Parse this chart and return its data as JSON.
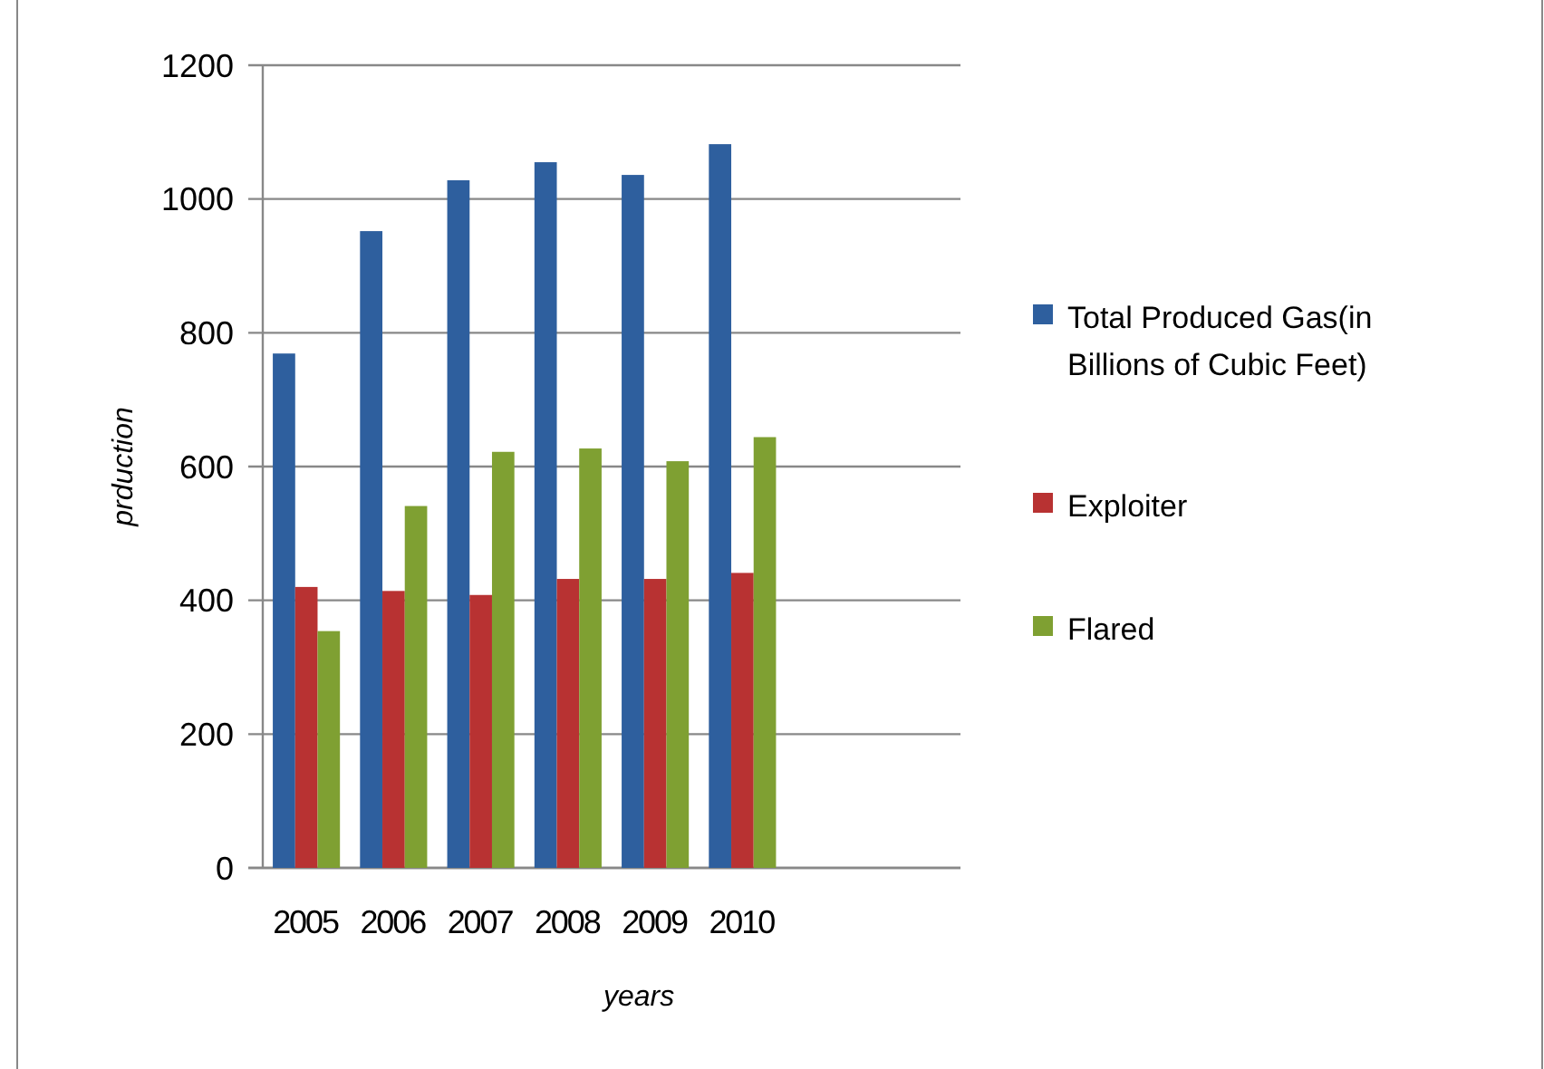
{
  "chart_data": {
    "type": "bar",
    "xlabel": "years",
    "ylabel": "prduction",
    "categories": [
      "2005",
      "2006",
      "2007",
      "2008",
      "2009",
      "2010",
      null,
      null
    ],
    "series": [
      {
        "name": "Total Produced Gas(in Billions of Cubic Feet)",
        "color": "#2e5f9e",
        "values": [
          769,
          952,
          1028,
          1055,
          1036,
          1082,
          null,
          null
        ]
      },
      {
        "name": "Exploiter",
        "color": "#b83232",
        "values": [
          420,
          414,
          408,
          432,
          432,
          441,
          null,
          null
        ]
      },
      {
        "name": "Flared",
        "color": "#7fa032",
        "values": [
          354,
          541,
          622,
          627,
          608,
          644,
          null,
          null
        ]
      }
    ],
    "ylim": [
      0,
      1200
    ],
    "yticks": [
      0,
      200,
      400,
      600,
      800,
      1000,
      1200
    ],
    "grid": "y",
    "legend": "right"
  }
}
